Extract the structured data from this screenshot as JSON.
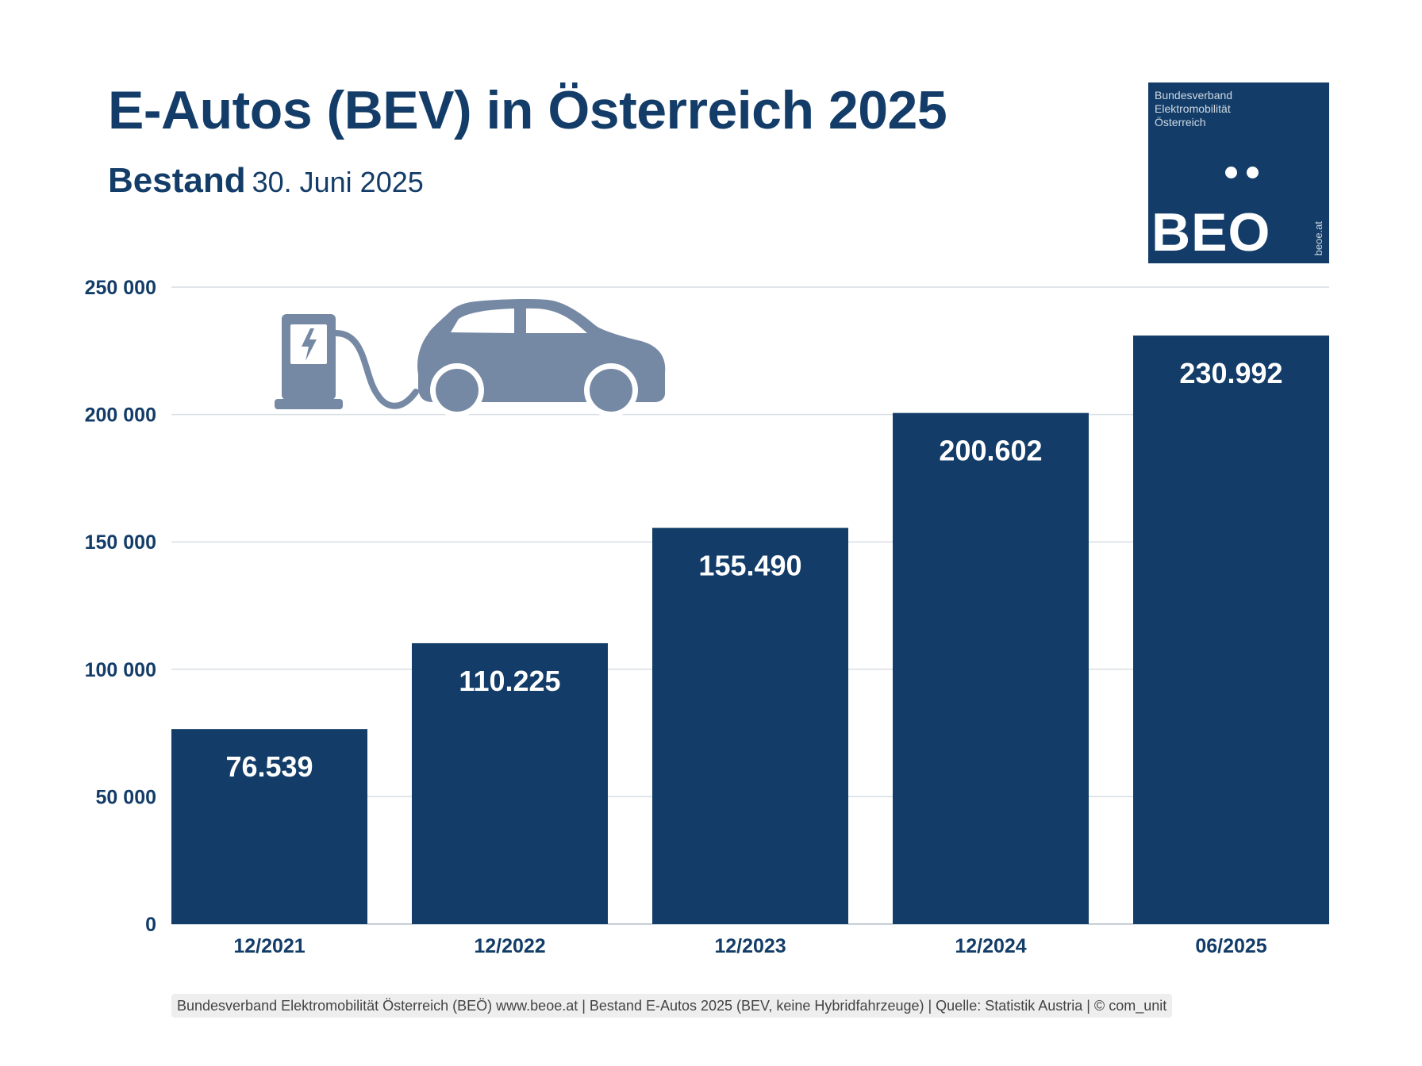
{
  "header": {
    "title": "E-Autos (BEV) in Österreich 2025",
    "subtitle_bold": "Bestand",
    "subtitle_date": "30. Juni 2025"
  },
  "logo": {
    "lines": [
      "Bundesverband",
      "Elektromobilität",
      "Österreich"
    ],
    "wordmark": "BEO",
    "url": "beoe.at"
  },
  "footer": {
    "text": "Bundesverband Elektromobilität Österreich (BEÖ) www.beoe.at | Bestand E-Autos 2025 (BEV, keine Hybridfahrzeuge) | Quelle: Statistik Austria | © com_unit"
  },
  "icons": [
    "ev-charger-icon",
    "car-icon"
  ],
  "colors": {
    "bar": "#133d68",
    "icon": "#7689a4",
    "text": "#133d68",
    "grid": "#d9dee4"
  },
  "chart_data": {
    "type": "bar",
    "title": "E-Autos (BEV) in Österreich 2025",
    "subtitle": "Bestand 30. Juni 2025",
    "xlabel": "",
    "ylabel": "",
    "categories": [
      "12/2021",
      "12/2022",
      "12/2023",
      "12/2024",
      "06/2025"
    ],
    "values": [
      76539,
      110225,
      155490,
      200602,
      230992
    ],
    "data_labels": [
      "76.539",
      "110.225",
      "155.490",
      "200.602",
      "230.992"
    ],
    "ylim": [
      0,
      250000
    ],
    "yticks": [
      0,
      50000,
      100000,
      150000,
      200000,
      250000
    ],
    "ytick_labels": [
      "0",
      "50 000",
      "100 000",
      "150 000",
      "200 000",
      "250 000"
    ],
    "grid": true,
    "legend": "none"
  }
}
